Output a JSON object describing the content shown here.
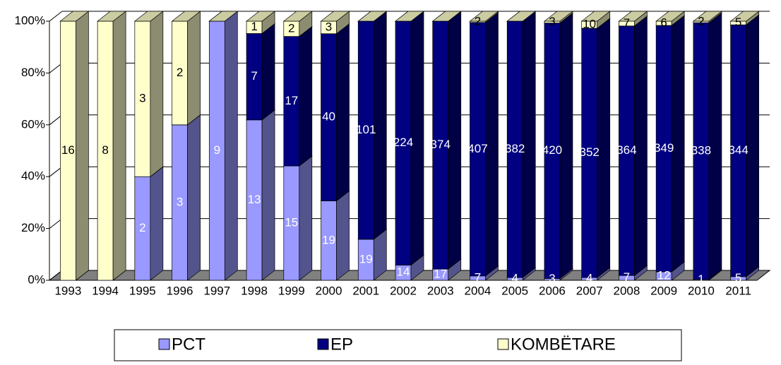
{
  "chart_data": {
    "type": "bar",
    "stacked": "percent",
    "categories": [
      "1993",
      "1994",
      "1995",
      "1996",
      "1997",
      "1998",
      "1999",
      "2000",
      "2001",
      "2002",
      "2003",
      "2004",
      "2005",
      "2006",
      "2007",
      "2008",
      "2009",
      "2010",
      "2011"
    ],
    "series": [
      {
        "name": "PCT",
        "color": "#9999ff",
        "values": [
          0,
          0,
          2,
          3,
          9,
          13,
          15,
          19,
          19,
          14,
          17,
          7,
          4,
          3,
          4,
          7,
          12,
          1,
          5
        ]
      },
      {
        "name": "EP",
        "color": "#000080",
        "values": [
          0,
          0,
          0,
          0,
          0,
          7,
          17,
          40,
          101,
          224,
          374,
          407,
          382,
          420,
          352,
          364,
          349,
          338,
          344
        ]
      },
      {
        "name": "KOMBËTARE",
        "color": "#ffffcc",
        "values": [
          16,
          8,
          3,
          2,
          0,
          1,
          2,
          3,
          0,
          0,
          0,
          2,
          0,
          3,
          10,
          7,
          6,
          2,
          5
        ]
      }
    ],
    "ylim": [
      0,
      100
    ],
    "yticks": [
      {
        "value": 0,
        "label": "0%"
      },
      {
        "value": 20,
        "label": "20%"
      },
      {
        "value": 40,
        "label": "40%"
      },
      {
        "value": 60,
        "label": "60%"
      },
      {
        "value": 80,
        "label": "80%"
      },
      {
        "value": 100,
        "label": "100%"
      }
    ],
    "grid": true,
    "legend": "bottom"
  }
}
